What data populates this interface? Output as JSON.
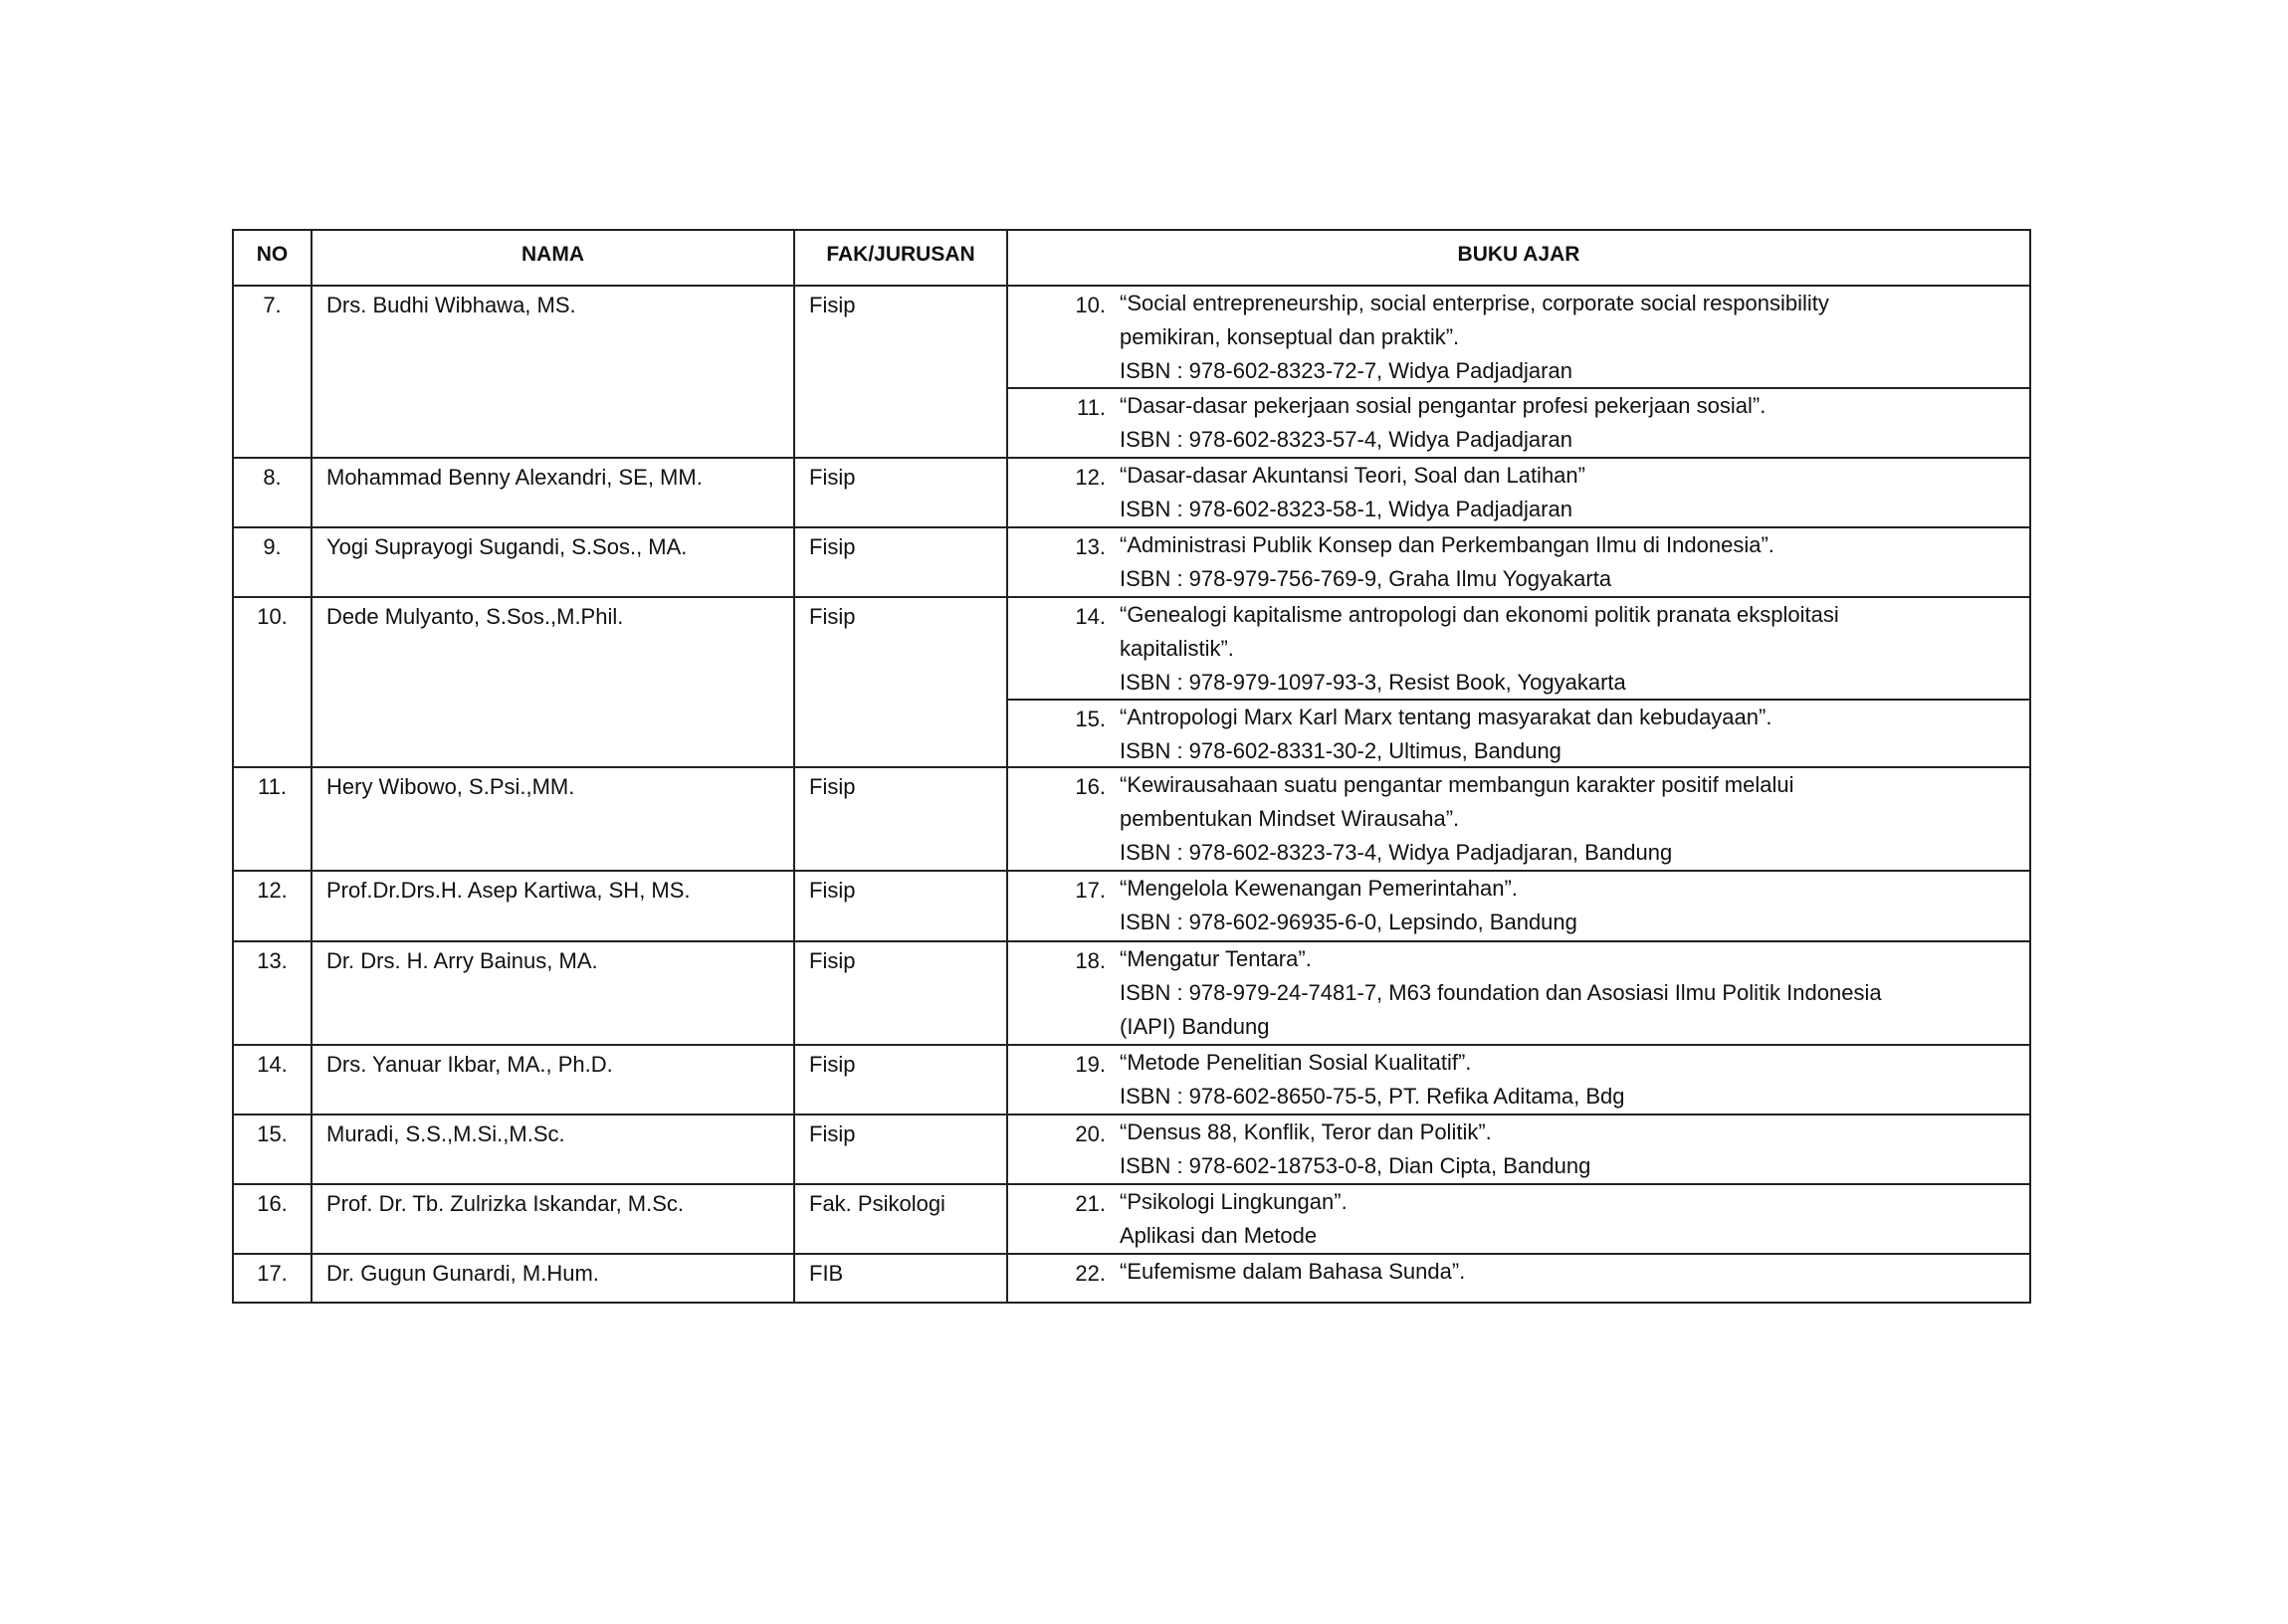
{
  "headers": {
    "no": "NO",
    "name": "NAMA",
    "faculty": "FAK/JURUSAN",
    "books": "BUKU AJAR"
  },
  "rows": [
    {
      "no": "7.",
      "name": "Drs. Budhi Wibhawa, MS.",
      "faculty": "Fisip",
      "books": [
        {
          "num": "10.",
          "lines": [
            "“Social entrepreneurship, social enterprise, corporate social responsibility",
            "pemikiran, konseptual dan praktik”.",
            "ISBN : 978-602-8323-72-7, Widya Padjadjaran"
          ]
        },
        {
          "num": "11.",
          "lines": [
            "“Dasar-dasar pekerjaan sosial pengantar profesi pekerjaan sosial”.",
            "ISBN : 978-602-8323-57-4, Widya Padjadjaran"
          ]
        }
      ]
    },
    {
      "no": "8.",
      "name": "Mohammad Benny Alexandri, SE, MM.",
      "faculty": "Fisip",
      "books": [
        {
          "num": "12.",
          "lines": [
            "“Dasar-dasar Akuntansi Teori, Soal dan Latihan”",
            "ISBN : 978-602-8323-58-1, Widya Padjadjaran"
          ]
        }
      ]
    },
    {
      "no": "9.",
      "name": "Yogi Suprayogi Sugandi, S.Sos., MA.",
      "faculty": "Fisip",
      "books": [
        {
          "num": "13.",
          "lines": [
            "“Administrasi Publik Konsep dan Perkembangan Ilmu di Indonesia”.",
            "ISBN : 978-979-756-769-9, Graha Ilmu Yogyakarta"
          ]
        }
      ]
    },
    {
      "no": "10.",
      "name": "Dede Mulyanto, S.Sos.,M.Phil.",
      "faculty": "Fisip",
      "books": [
        {
          "num": "14.",
          "lines": [
            "“Genealogi kapitalisme antropologi dan ekonomi politik pranata eksploitasi",
            "kapitalistik”.",
            "ISBN : 978-979-1097-93-3, Resist Book, Yogyakarta"
          ]
        },
        {
          "num": "15.",
          "lines": [
            "“Antropologi Marx Karl Marx tentang masyarakat dan kebudayaan”.",
            "ISBN : 978-602-8331-30-2, Ultimus, Bandung"
          ]
        }
      ]
    },
    {
      "no": "11.",
      "name": "Hery Wibowo, S.Psi.,MM.",
      "faculty": "Fisip",
      "books": [
        {
          "num": "16.",
          "lines": [
            "“Kewirausahaan suatu pengantar membangun karakter positif melalui",
            "pembentukan Mindset Wirausaha”.",
            "ISBN : 978-602-8323-73-4, Widya Padjadjaran, Bandung"
          ]
        }
      ]
    },
    {
      "no": "12.",
      "name": "Prof.Dr.Drs.H. Asep Kartiwa, SH, MS.",
      "faculty": "Fisip",
      "books": [
        {
          "num": "17.",
          "lines": [
            "“Mengelola Kewenangan Pemerintahan”.",
            "ISBN : 978-602-96935-6-0, Lepsindo, Bandung"
          ]
        }
      ]
    },
    {
      "no": "13.",
      "name": "Dr. Drs. H. Arry Bainus, MA.",
      "faculty": "Fisip",
      "books": [
        {
          "num": "18.",
          "lines": [
            "“Mengatur Tentara”.",
            "ISBN : 978-979-24-7481-7, M63 foundation dan Asosiasi Ilmu Politik Indonesia",
            "(IAPI) Bandung"
          ]
        }
      ]
    },
    {
      "no": "14.",
      "name": "Drs. Yanuar Ikbar, MA., Ph.D.",
      "faculty": "Fisip",
      "books": [
        {
          "num": "19.",
          "lines": [
            "“Metode Penelitian Sosial Kualitatif”.",
            "ISBN : 978-602-8650-75-5,  PT. Refika Aditama, Bdg"
          ]
        }
      ]
    },
    {
      "no": "15.",
      "name": "Muradi, S.S.,M.Si.,M.Sc.",
      "faculty": "Fisip",
      "books": [
        {
          "num": "20.",
          "lines": [
            "“Densus 88, Konflik, Teror dan Politik”.",
            "ISBN : 978-602-18753-0-8, Dian Cipta, Bandung"
          ]
        }
      ]
    },
    {
      "no": "16.",
      "name": "Prof. Dr. Tb. Zulrizka Iskandar, M.Sc.",
      "faculty": "Fak. Psikologi",
      "books": [
        {
          "num": "21.",
          "lines": [
            "“Psikologi Lingkungan”.",
            "Aplikasi dan Metode"
          ]
        }
      ]
    },
    {
      "no": "17.",
      "name": "Dr. Gugun Gunardi, M.Hum.",
      "faculty": "FIB",
      "books": [
        {
          "num": "22.",
          "lines": [
            "“Eufemisme dalam Bahasa Sunda”."
          ]
        }
      ]
    }
  ]
}
